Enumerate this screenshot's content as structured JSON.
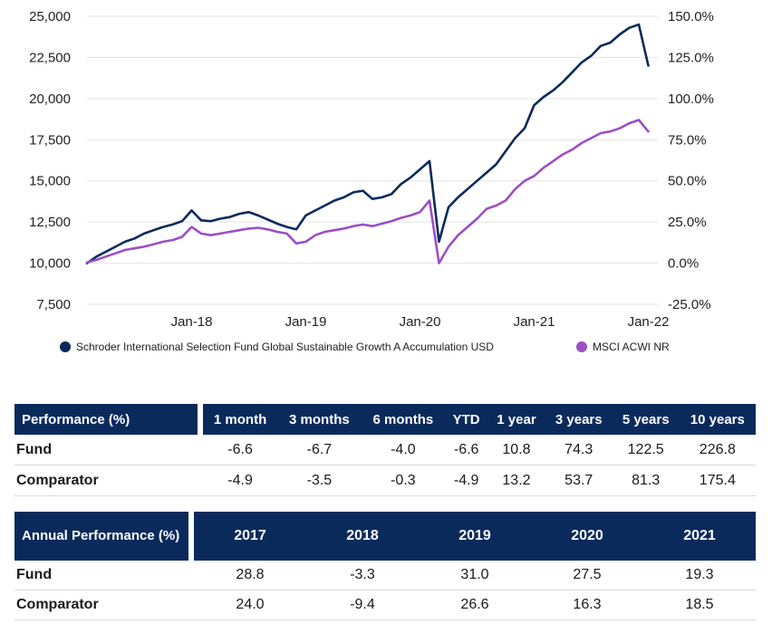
{
  "chart_data": {
    "type": "line",
    "x_ticks": [
      "Jan-18",
      "Jan-19",
      "Jan-20",
      "Jan-21",
      "Jan-22"
    ],
    "y_left_ticks": [
      "25,000",
      "22,500",
      "20,000",
      "17,500",
      "15,000",
      "12,500",
      "10,000",
      "7,500"
    ],
    "y_right_ticks": [
      "150.0%",
      "125.0%",
      "100.0%",
      "75.0%",
      "50.0%",
      "25.0%",
      "0.0%",
      "-25.0%"
    ],
    "ylim_left": [
      7500,
      25000
    ],
    "ylim_right": [
      -25,
      150
    ],
    "xlim": [
      "2017-02",
      "2022-02"
    ],
    "legend_position": "bottom",
    "series": [
      {
        "name": "Schroder International Selection Fund Global Sustainable Growth A Accumulation USD",
        "color": "#0b2a5c",
        "x": [
          "2017-02",
          "2017-03",
          "2017-04",
          "2017-05",
          "2017-06",
          "2017-07",
          "2017-08",
          "2017-09",
          "2017-10",
          "2017-11",
          "2017-12",
          "2018-01",
          "2018-02",
          "2018-03",
          "2018-04",
          "2018-05",
          "2018-06",
          "2018-07",
          "2018-08",
          "2018-09",
          "2018-10",
          "2018-11",
          "2018-12",
          "2019-01",
          "2019-02",
          "2019-03",
          "2019-04",
          "2019-05",
          "2019-06",
          "2019-07",
          "2019-08",
          "2019-09",
          "2019-10",
          "2019-11",
          "2019-12",
          "2020-01",
          "2020-02",
          "2020-03",
          "2020-04",
          "2020-05",
          "2020-06",
          "2020-07",
          "2020-08",
          "2020-09",
          "2020-10",
          "2020-11",
          "2020-12",
          "2021-01",
          "2021-02",
          "2021-03",
          "2021-04",
          "2021-05",
          "2021-06",
          "2021-07",
          "2021-08",
          "2021-09",
          "2021-10",
          "2021-11",
          "2021-12",
          "2022-01"
        ],
        "values": [
          10000,
          10400,
          10700,
          11000,
          11300,
          11500,
          11800,
          12000,
          12200,
          12350,
          12550,
          13200,
          12600,
          12550,
          12700,
          12800,
          13000,
          13100,
          12900,
          12650,
          12400,
          12200,
          12050,
          12900,
          13200,
          13500,
          13800,
          14000,
          14300,
          14400,
          13900,
          14000,
          14200,
          14800,
          15200,
          15700,
          16200,
          11300,
          13400,
          14000,
          14500,
          15000,
          15500,
          16000,
          16800,
          17600,
          18200,
          19600,
          20100,
          20500,
          21000,
          21600,
          22200,
          22600,
          23200,
          23400,
          23900,
          24300,
          24500,
          22000
        ]
      },
      {
        "name": "MSCI ACWI NR",
        "color": "#9b4fc4",
        "x": [
          "2017-02",
          "2017-03",
          "2017-04",
          "2017-05",
          "2017-06",
          "2017-07",
          "2017-08",
          "2017-09",
          "2017-10",
          "2017-11",
          "2017-12",
          "2018-01",
          "2018-02",
          "2018-03",
          "2018-04",
          "2018-05",
          "2018-06",
          "2018-07",
          "2018-08",
          "2018-09",
          "2018-10",
          "2018-11",
          "2018-12",
          "2019-01",
          "2019-02",
          "2019-03",
          "2019-04",
          "2019-05",
          "2019-06",
          "2019-07",
          "2019-08",
          "2019-09",
          "2019-10",
          "2019-11",
          "2019-12",
          "2020-01",
          "2020-02",
          "2020-03",
          "2020-04",
          "2020-05",
          "2020-06",
          "2020-07",
          "2020-08",
          "2020-09",
          "2020-10",
          "2020-11",
          "2020-12",
          "2021-01",
          "2021-02",
          "2021-03",
          "2021-04",
          "2021-05",
          "2021-06",
          "2021-07",
          "2021-08",
          "2021-09",
          "2021-10",
          "2021-11",
          "2021-12",
          "2022-01"
        ],
        "values": [
          0.5,
          2,
          4,
          6,
          8,
          9,
          10,
          11.5,
          13,
          14,
          16,
          22,
          18,
          17,
          18,
          19,
          20,
          21,
          21.5,
          20.5,
          19,
          18,
          12,
          13,
          17,
          19,
          20,
          21,
          22.5,
          23.5,
          22.5,
          24,
          25.5,
          27.5,
          29,
          31,
          38,
          0,
          10,
          17,
          22,
          27,
          33,
          35,
          38,
          45,
          50,
          53,
          58,
          62,
          66,
          69,
          73,
          76,
          79,
          80,
          82,
          85,
          87,
          80
        ]
      }
    ]
  },
  "performance_table": {
    "header": [
      "Performance (%)",
      "1 month",
      "3 months",
      "6 months",
      "YTD",
      "1 year",
      "3 years",
      "5 years",
      "10 years"
    ],
    "rows": [
      [
        "Fund",
        "-6.6",
        "-6.7",
        "-4.0",
        "-6.6",
        "10.8",
        "74.3",
        "122.5",
        "226.8"
      ],
      [
        "Comparator",
        "-4.9",
        "-3.5",
        "-0.3",
        "-4.9",
        "13.2",
        "53.7",
        "81.3",
        "175.4"
      ]
    ]
  },
  "annual_table": {
    "header": [
      "Annual Performance (%)",
      "2017",
      "2018",
      "2019",
      "2020",
      "2021"
    ],
    "rows": [
      [
        "Fund",
        "28.8",
        "-3.3",
        "31.0",
        "27.5",
        "19.3"
      ],
      [
        "Comparator",
        "24.0",
        "-9.4",
        "26.6",
        "16.3",
        "18.5"
      ]
    ]
  }
}
